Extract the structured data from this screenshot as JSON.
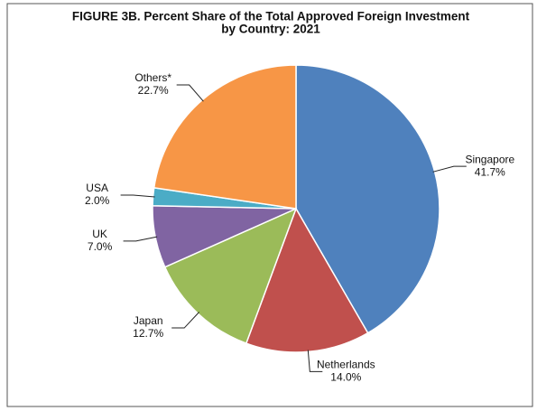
{
  "chart_data": {
    "type": "pie",
    "title": [
      "FIGURE 3B. Percent Share of the Total Approved Foreign Investment",
      "by Country: 2021"
    ],
    "categories": [
      "Singapore",
      "Netherlands",
      "Japan",
      "UK",
      "USA",
      "Others*"
    ],
    "values": [
      41.7,
      14.0,
      12.7,
      7.0,
      2.0,
      22.7
    ],
    "value_labels": [
      "41.7%",
      "14.0%",
      "12.7%",
      "7.0%",
      "2.0%",
      "22.7%"
    ],
    "colors": [
      "#4f81bd",
      "#c0504d",
      "#9bbb59",
      "#8064a2",
      "#4bacc6",
      "#f79646"
    ]
  }
}
